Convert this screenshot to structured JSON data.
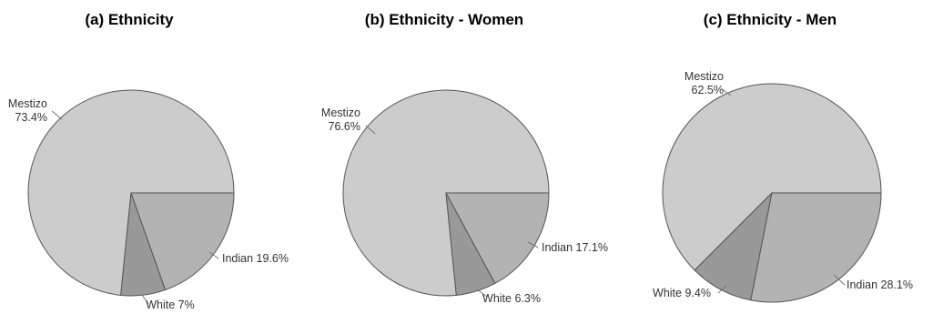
{
  "chart_data": [
    {
      "type": "pie",
      "title": "(a) Ethnicity",
      "slices": [
        {
          "label": "Mestizo",
          "pct_label": "73.4%",
          "value": 73.4,
          "color": "#cccccc"
        },
        {
          "label": "White",
          "pct_label": "7%",
          "value": 7.0,
          "color": "#999999"
        },
        {
          "label": "Indian",
          "pct_label": "19.6%",
          "value": 19.6,
          "color": "#b3b3b3"
        }
      ]
    },
    {
      "type": "pie",
      "title": "(b) Ethnicity - Women",
      "slices": [
        {
          "label": "Mestizo",
          "pct_label": "76.6%",
          "value": 76.6,
          "color": "#cccccc"
        },
        {
          "label": "White",
          "pct_label": "6.3%",
          "value": 6.3,
          "color": "#999999"
        },
        {
          "label": "Indian",
          "pct_label": "17.1%",
          "value": 17.1,
          "color": "#b3b3b3"
        }
      ]
    },
    {
      "type": "pie",
      "title": "(c) Ethnicity - Men",
      "slices": [
        {
          "label": "Mestizo",
          "pct_label": "62.5%",
          "value": 62.5,
          "color": "#cccccc"
        },
        {
          "label": "White",
          "pct_label": "9.4%",
          "value": 9.4,
          "color": "#999999"
        },
        {
          "label": "Indian",
          "pct_label": "28.1%",
          "value": 28.1,
          "color": "#b3b3b3"
        }
      ]
    }
  ]
}
